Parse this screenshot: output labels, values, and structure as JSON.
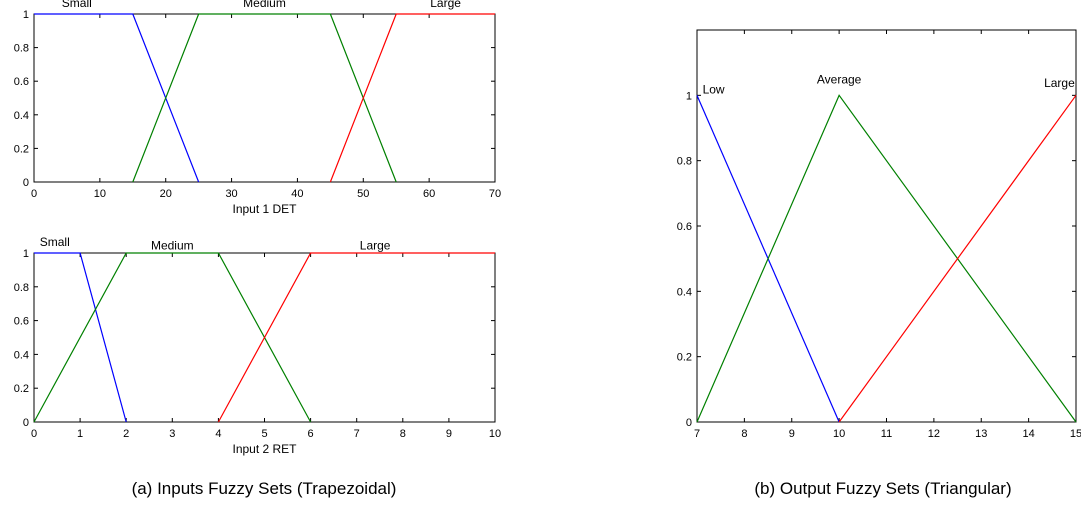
{
  "colors": {
    "blue": "#0000ff",
    "green": "#008000",
    "red": "#ff0000"
  },
  "chart_data": [
    {
      "type": "line",
      "xlabel": "Input 1 DET",
      "xlim": [
        0,
        70
      ],
      "ylim": [
        0,
        1
      ],
      "xticks": [
        "0",
        "10",
        "20",
        "30",
        "40",
        "50",
        "60",
        "70"
      ],
      "yticks": [
        "0",
        "0.2",
        "0.4",
        "0.6",
        "0.8",
        "1"
      ],
      "grid": false,
      "series": [
        {
          "name": "Small",
          "color": "blue",
          "x": [
            0,
            15,
            25
          ],
          "y": [
            1,
            1,
            0
          ]
        },
        {
          "name": "Medium",
          "color": "green",
          "x": [
            15,
            25,
            45,
            55
          ],
          "y": [
            0,
            1,
            1,
            0
          ]
        },
        {
          "name": "Large",
          "color": "red",
          "x": [
            45,
            55,
            70
          ],
          "y": [
            0,
            1,
            1
          ]
        }
      ],
      "labels": [
        {
          "text": "Small",
          "x": 6.5,
          "y": 1.03
        },
        {
          "text": "Medium",
          "x": 35,
          "y": 1.03
        },
        {
          "text": "Large",
          "x": 62.5,
          "y": 1.03
        }
      ]
    },
    {
      "type": "line",
      "xlabel": "Input 2 RET",
      "xlim": [
        0,
        10
      ],
      "ylim": [
        0,
        1
      ],
      "xticks": [
        "0",
        "1",
        "2",
        "3",
        "4",
        "5",
        "6",
        "7",
        "8",
        "9",
        "10"
      ],
      "yticks": [
        "0",
        "0.2",
        "0.4",
        "0.6",
        "0.8",
        "1"
      ],
      "grid": false,
      "series": [
        {
          "name": "Small",
          "color": "blue",
          "x": [
            0,
            1,
            2
          ],
          "y": [
            1,
            1,
            0
          ]
        },
        {
          "name": "Medium",
          "color": "green",
          "x": [
            0,
            2,
            4,
            6
          ],
          "y": [
            0,
            1,
            1,
            0
          ]
        },
        {
          "name": "Large",
          "color": "red",
          "x": [
            4,
            6,
            10
          ],
          "y": [
            0,
            1,
            1
          ]
        }
      ],
      "labels": [
        {
          "text": "Small",
          "x": 0.45,
          "y": 1.03
        },
        {
          "text": "Medium",
          "x": 3.0,
          "y": 1.01
        },
        {
          "text": "Large",
          "x": 7.4,
          "y": 1.01
        }
      ]
    },
    {
      "type": "line",
      "xlabel": "",
      "xlim": [
        7,
        15
      ],
      "ylim": [
        0,
        1.2
      ],
      "xticks": [
        "7",
        "8",
        "9",
        "10",
        "11",
        "12",
        "13",
        "14",
        "15"
      ],
      "yticks": [
        "0",
        "0.2",
        "0.4",
        "0.6",
        "0.8",
        "1"
      ],
      "grid": false,
      "series": [
        {
          "name": "Low",
          "color": "blue",
          "x": [
            7,
            10
          ],
          "y": [
            1,
            0
          ]
        },
        {
          "name": "Average",
          "color": "green",
          "x": [
            7,
            10,
            15
          ],
          "y": [
            0,
            1,
            0
          ]
        },
        {
          "name": "Large",
          "color": "red",
          "x": [
            10,
            15
          ],
          "y": [
            0,
            1
          ]
        }
      ],
      "labels": [
        {
          "text": "Low",
          "x": 7.35,
          "y": 1.0
        },
        {
          "text": "Average",
          "x": 10.0,
          "y": 1.03
        },
        {
          "text": "Large",
          "x": 14.65,
          "y": 1.02
        }
      ]
    }
  ],
  "captions": {
    "inputs": "(a) Inputs Fuzzy Sets (Trapezoidal)",
    "output": "(b) Output Fuzzy Sets (Triangular)"
  }
}
